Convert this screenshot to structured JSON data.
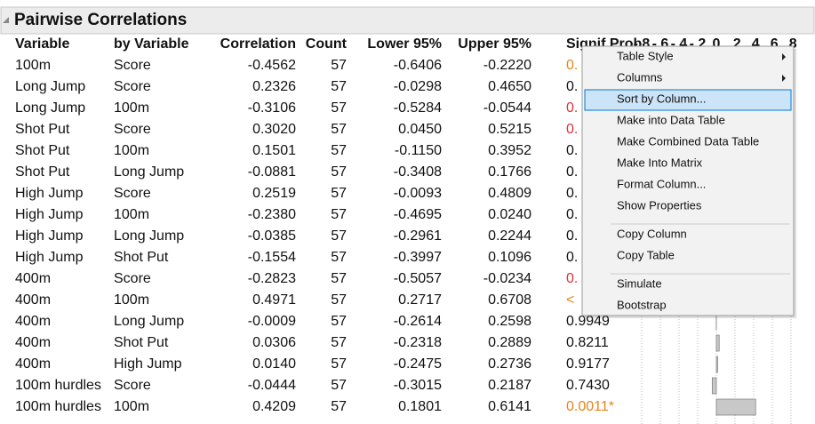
{
  "title": "Pairwise Correlations",
  "table": {
    "headers": [
      "Variable",
      "by Variable",
      "Correlation",
      "Count",
      "Lower 95%",
      "Upper 95%",
      "Signif Prob"
    ],
    "axis_labels": [
      "-.8",
      "-.6",
      "-.4",
      "-.2",
      "0",
      ".2",
      ".4",
      ".6",
      ".8"
    ],
    "rows": [
      [
        "100m",
        "Score",
        "-0.4562",
        "57",
        "-0.6406",
        "-0.2220",
        "0."
      ],
      [
        "Long Jump",
        "Score",
        "0.2326",
        "57",
        "-0.0298",
        "0.4650",
        "0."
      ],
      [
        "Long Jump",
        "100m",
        "-0.3106",
        "57",
        "-0.5284",
        "-0.0544",
        "0."
      ],
      [
        "Shot Put",
        "Score",
        "0.3020",
        "57",
        "0.0450",
        "0.5215",
        "0."
      ],
      [
        "Shot Put",
        "100m",
        "0.1501",
        "57",
        "-0.1150",
        "0.3952",
        "0."
      ],
      [
        "Shot Put",
        "Long Jump",
        "-0.0881",
        "57",
        "-0.3408",
        "0.1766",
        "0."
      ],
      [
        "High Jump",
        "Score",
        "0.2519",
        "57",
        "-0.0093",
        "0.4809",
        "0."
      ],
      [
        "High Jump",
        "100m",
        "-0.2380",
        "57",
        "-0.4695",
        "0.0240",
        "0."
      ],
      [
        "High Jump",
        "Long Jump",
        "-0.0385",
        "57",
        "-0.2961",
        "0.2244",
        "0."
      ],
      [
        "High Jump",
        "Shot Put",
        "-0.1554",
        "57",
        "-0.3997",
        "0.1096",
        "0."
      ],
      [
        "400m",
        "Score",
        "-0.2823",
        "57",
        "-0.5057",
        "-0.0234",
        "0."
      ],
      [
        "400m",
        "100m",
        "0.4971",
        "57",
        "0.2717",
        "0.6708",
        "<"
      ],
      [
        "400m",
        "Long Jump",
        "-0.0009",
        "57",
        "-0.2614",
        "0.2598",
        "0.9949"
      ],
      [
        "400m",
        "Shot Put",
        "0.0306",
        "57",
        "-0.2318",
        "0.2889",
        "0.8211"
      ],
      [
        "400m",
        "High Jump",
        "0.0140",
        "57",
        "-0.2475",
        "0.2736",
        "0.9177"
      ],
      [
        "100m hurdles",
        "Score",
        "-0.0444",
        "57",
        "-0.3015",
        "0.2187",
        "0.7430"
      ],
      [
        "100m hurdles",
        "100m",
        "0.4209",
        "57",
        "0.1801",
        "0.6141",
        "0.0011*"
      ]
    ],
    "prob_colors": [
      "#e8841a",
      "#111",
      "#e0303a",
      "#e0303a",
      "#111",
      "#111",
      "#111",
      "#111",
      "#111",
      "#111",
      "#e0303a",
      "#e8841a",
      "#111",
      "#111",
      "#111",
      "#111",
      "#e8841a"
    ]
  },
  "context_menu": {
    "items": [
      {
        "label": "Table Style",
        "submenu": true
      },
      {
        "label": "Columns",
        "submenu": true
      },
      {
        "label": "Sort by Column...",
        "highlighted": true
      },
      {
        "label": "Make into Data Table"
      },
      {
        "label": "Make Combined Data Table"
      },
      {
        "label": "Make Into Matrix"
      },
      {
        "label": "Format Column..."
      },
      {
        "label": "Show Properties"
      },
      {
        "label": "Copy Column",
        "separator_before": true
      },
      {
        "label": "Copy Table"
      },
      {
        "label": "Simulate",
        "separator_before": true
      },
      {
        "label": "Bootstrap"
      }
    ]
  }
}
